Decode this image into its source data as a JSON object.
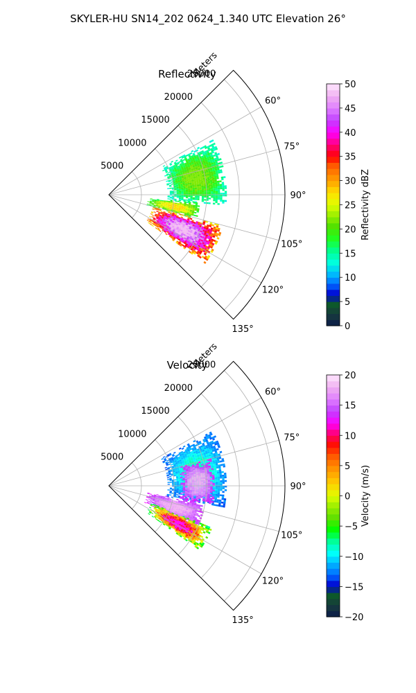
{
  "suptitle": "SKYLER-HU  SN14_202  0624_1.340 UTC Elevation 26°",
  "chart_data": [
    {
      "type": "heatmap",
      "subtype": "polar-sector (PPI radar)",
      "title": "Reflectivity",
      "radial_label": "Meters",
      "radial_ticks": [
        5000,
        10000,
        15000,
        20000,
        25000
      ],
      "radial_range": [
        0,
        27000
      ],
      "azimuth_ticks": [
        60,
        75,
        90,
        105,
        120,
        135
      ],
      "azimuth_tick_labels": [
        "60°",
        "75°",
        "90°",
        "105°",
        "120°",
        "135°"
      ],
      "azimuth_range": [
        45,
        135
      ],
      "grid": true,
      "colorbar": {
        "label": "Reflectivity dBZ",
        "range": [
          0,
          50
        ],
        "ticks": [
          0,
          5,
          10,
          15,
          20,
          25,
          30,
          35,
          40,
          45,
          50
        ],
        "tick_labels": [
          "0",
          "5",
          "10",
          "15",
          "20",
          "25",
          "30",
          "35",
          "40",
          "45",
          "50"
        ],
        "colormap": "HomeyerRainbow-like (navy→blue→cyan→green→yellow→red→magenta→white)"
      },
      "echoes": [
        {
          "azimuth_range": [
            62,
            95
          ],
          "range_m": [
            9000,
            18000
          ],
          "value_range": [
            12,
            22
          ],
          "color_desc": "green"
        },
        {
          "azimuth_range": [
            95,
            105
          ],
          "range_m": [
            6000,
            14000
          ],
          "value_range": [
            15,
            28
          ],
          "color_desc": "green-yellow"
        },
        {
          "azimuth_range": [
            105,
            125
          ],
          "range_m": [
            7000,
            18000
          ],
          "value_range": [
            25,
            48
          ],
          "color_desc": "yellow-red-magenta core"
        }
      ]
    },
    {
      "type": "heatmap",
      "subtype": "polar-sector (PPI radar)",
      "title": "Velocity",
      "radial_label": "Meters",
      "radial_ticks": [
        5000,
        10000,
        15000,
        20000,
        25000
      ],
      "radial_range": [
        0,
        27000
      ],
      "azimuth_ticks": [
        60,
        75,
        90,
        105,
        120,
        135
      ],
      "azimuth_tick_labels": [
        "60°",
        "75°",
        "90°",
        "105°",
        "120°",
        "135°"
      ],
      "azimuth_range": [
        45,
        135
      ],
      "grid": true,
      "colorbar": {
        "label": "Velocity (m/s)",
        "range": [
          -20,
          20
        ],
        "ticks": [
          -20,
          -15,
          -10,
          -5,
          0,
          5,
          10,
          15,
          20
        ],
        "tick_labels": [
          "−20",
          "−15",
          "−10",
          "−5",
          "0",
          "5",
          "10",
          "15",
          "20"
        ],
        "colormap": "diverging (navy→blue→cyan→green→yellow→orange→red→magenta→pink)"
      },
      "echoes": [
        {
          "azimuth_range": [
            62,
            100
          ],
          "range_m": [
            9000,
            18000
          ],
          "value_range": [
            -14,
            -8
          ],
          "color_desc": "cyan/blue (approaching)"
        },
        {
          "azimuth_range": [
            75,
            100
          ],
          "range_m": [
            11000,
            16000
          ],
          "value_range": [
            12,
            18
          ],
          "color_desc": "violet (receding)"
        },
        {
          "azimuth_range": [
            100,
            115
          ],
          "range_m": [
            6000,
            15000
          ],
          "value_range": [
            12,
            18
          ],
          "color_desc": "violet"
        },
        {
          "azimuth_range": [
            112,
            125
          ],
          "range_m": [
            7000,
            17000
          ],
          "value_range": [
            -8,
            12
          ],
          "color_desc": "red/yellow/green mix"
        }
      ]
    }
  ]
}
